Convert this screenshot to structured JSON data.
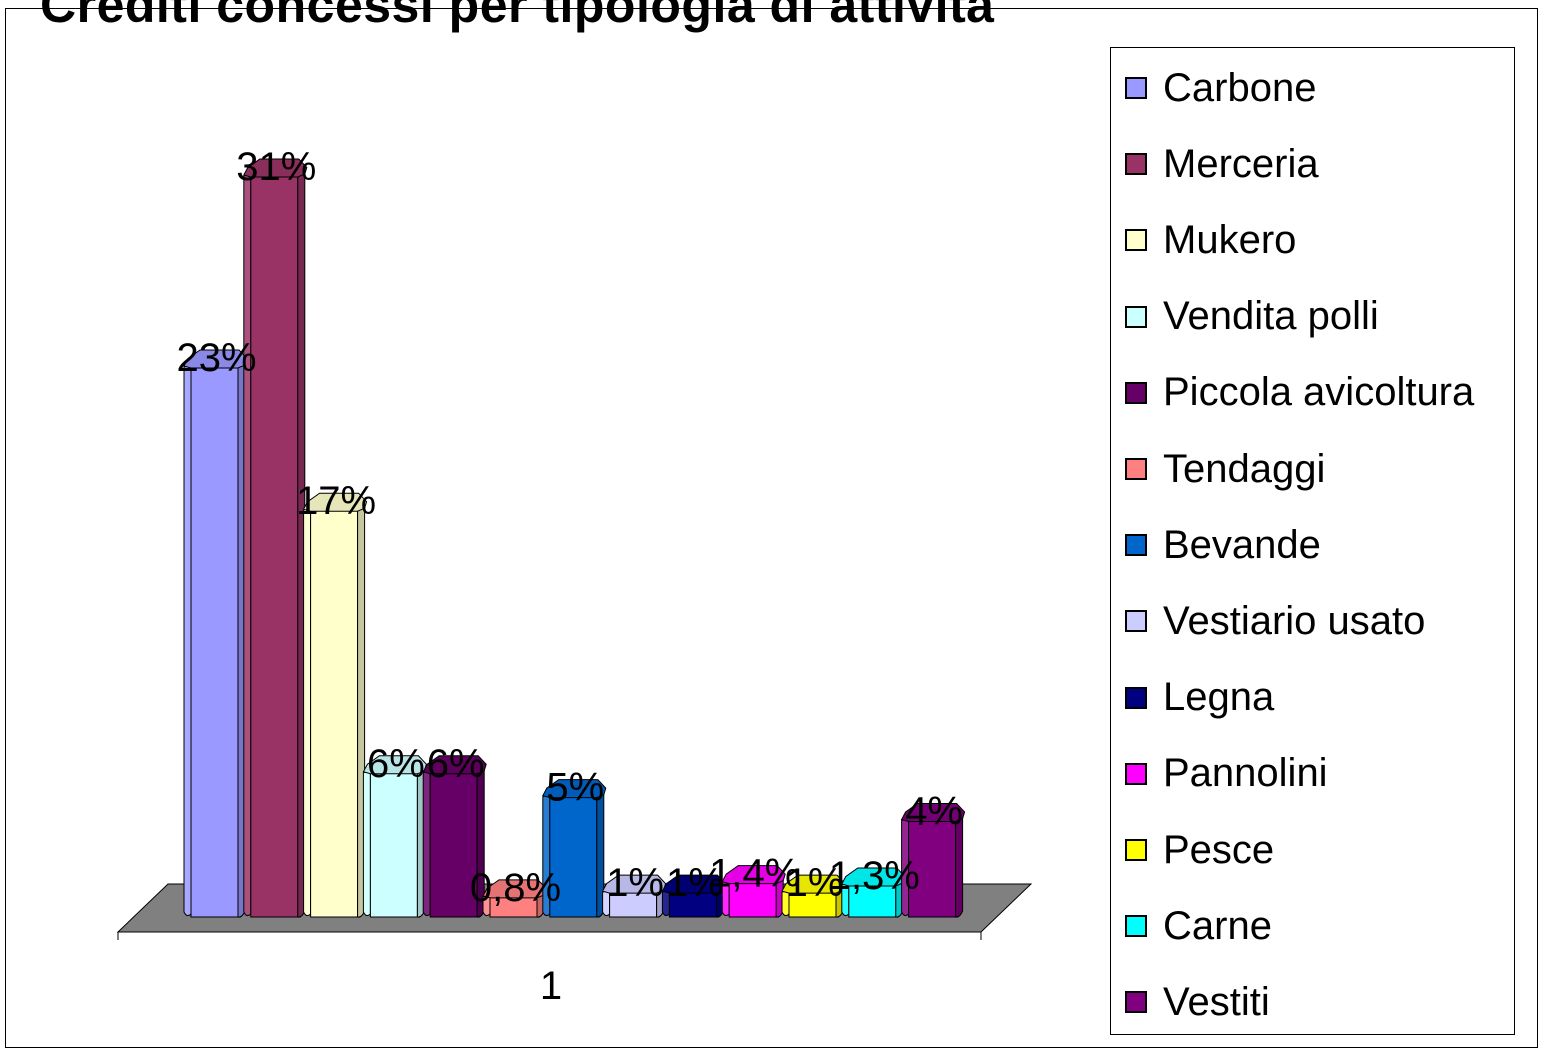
{
  "chart_data": {
    "type": "bar",
    "title": "Crediti concessi per tipologia di attività",
    "categories": [
      "1"
    ],
    "series": [
      {
        "name": "Carbone",
        "value": 23,
        "label": "23%",
        "color": "#9999ff"
      },
      {
        "name": "Merceria",
        "value": 31,
        "label": "31%",
        "color": "#993366"
      },
      {
        "name": "Mukero",
        "value": 17,
        "label": "17%",
        "color": "#ffffcc"
      },
      {
        "name": "Vendita polli",
        "value": 6,
        "label": "6%",
        "color": "#ccffff"
      },
      {
        "name": "Piccola avicoltura",
        "value": 6,
        "label": "6%",
        "color": "#660066"
      },
      {
        "name": "Tendaggi",
        "value": 0.8,
        "label": "0,8%",
        "color": "#ff8080"
      },
      {
        "name": "Bevande",
        "value": 5,
        "label": "5%",
        "color": "#0066cc"
      },
      {
        "name": "Vestiario usato",
        "value": 1,
        "label": "1%",
        "color": "#ccccff"
      },
      {
        "name": "Legna",
        "value": 1,
        "label": "1%",
        "color": "#000080"
      },
      {
        "name": "Pannolini",
        "value": 1.4,
        "label": "1,4%",
        "color": "#ff00ff"
      },
      {
        "name": "Pesce",
        "value": 1,
        "label": "1%",
        "color": "#ffff00"
      },
      {
        "name": "Carne",
        "value": 1.3,
        "label": "1,3%",
        "color": "#00ffff"
      },
      {
        "name": "Vestiti",
        "value": 4,
        "label": "4%",
        "color": "#800080"
      }
    ],
    "ylim": [
      0,
      31
    ],
    "grid": false,
    "legend_position": "right",
    "floor_color": "#808080"
  }
}
